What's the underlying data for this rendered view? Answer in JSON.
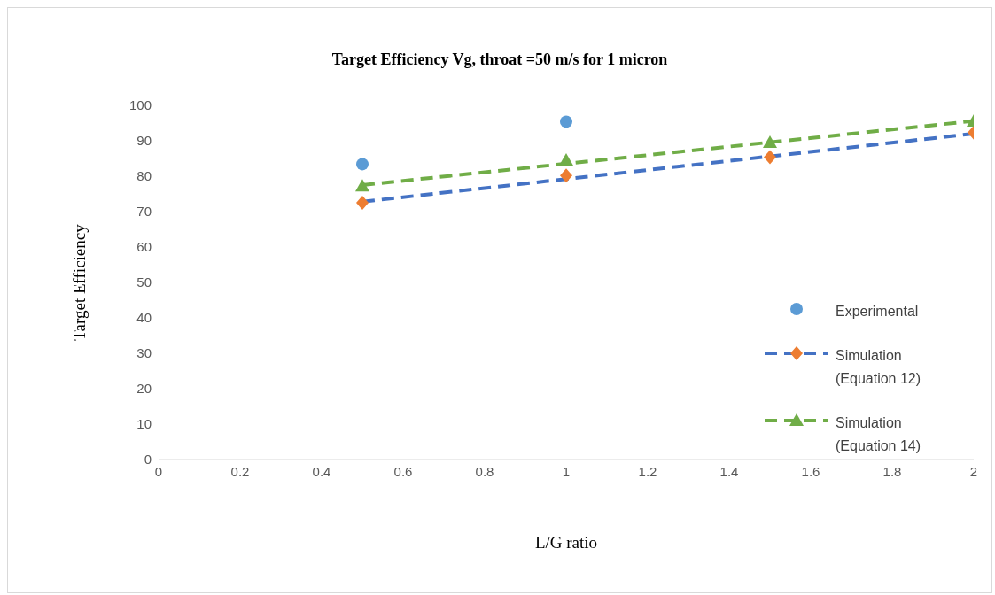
{
  "chart_data": {
    "type": "scatter",
    "title": "Target Efficiency Vg, throat =50 m/s for 1 micron",
    "xlabel": "L/G ratio",
    "ylabel": "Target Efficiency",
    "xlim": [
      0,
      2
    ],
    "xticks": [
      0,
      0.2,
      0.4,
      0.6,
      0.8,
      1,
      1.2,
      1.4,
      1.6,
      1.8,
      2
    ],
    "ylim": [
      0,
      100
    ],
    "yticks": [
      0,
      10,
      20,
      30,
      40,
      50,
      60,
      70,
      80,
      90,
      100
    ],
    "grid": false,
    "legend": "right",
    "series": [
      {
        "name": "Experimental",
        "marker": "circle",
        "color": "#5b9bd5",
        "x": [
          0.5,
          1
        ],
        "values": [
          83.4,
          95.4
        ]
      },
      {
        "type": "line",
        "line_style": "dashed",
        "marker": "none",
        "color": "#4472c4",
        "x": [
          0.5,
          2
        ],
        "values": [
          72.8,
          92
        ]
      },
      {
        "name": "Simulation (Equation 12)",
        "marker": "diamond",
        "color": "#ed7d31",
        "x": [
          0.5,
          1,
          1.5,
          2
        ],
        "values": [
          72.5,
          80.2,
          85.4,
          92.3
        ]
      },
      {
        "type": "line",
        "line_style": "dashed",
        "marker": "none",
        "color": "#70ad47",
        "x": [
          0.5,
          2
        ],
        "values": [
          77.5,
          95.6
        ]
      },
      {
        "name": "Simulation (Equation 14)",
        "marker": "triangle",
        "color": "#70ad47",
        "x": [
          0.5,
          1,
          1.5,
          2
        ],
        "values": [
          77.2,
          84.5,
          89.5,
          95.5
        ]
      }
    ]
  }
}
